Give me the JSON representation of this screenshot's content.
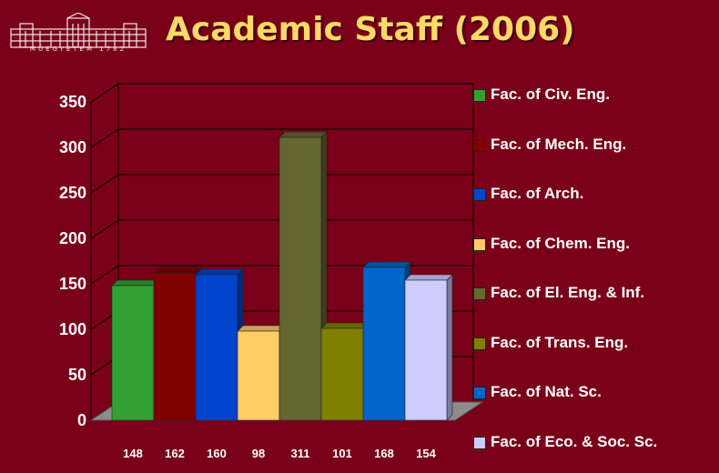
{
  "logo": {
    "caption": "MŰEGYETEM 1782"
  },
  "page_title": "Academic Staff (2006)",
  "chart_data": {
    "type": "bar",
    "title": "Academic Staff (2006)",
    "categories": [
      "Fac. of Civ. Eng.",
      "Fac. of Mech. Eng.",
      "Fac. of Arch.",
      "Fac. of Chem. Eng.",
      "Fac. of El. Eng. & Inf.",
      "Fac. of Trans. Eng.",
      "Fac. of Nat. Sc.",
      "Fac. of Eco. & Soc. Sc."
    ],
    "values": [
      148,
      162,
      160,
      98,
      311,
      101,
      168,
      154
    ],
    "value_labels": [
      "148",
      "162",
      "160",
      "98",
      "311",
      "101",
      "168",
      "154"
    ],
    "colors": [
      "#33a033",
      "#800000",
      "#0044cc",
      "#ffcc66",
      "#666633",
      "#808000",
      "#0066cc",
      "#ccccff"
    ],
    "ylim": [
      0,
      350
    ],
    "yticks": [
      0,
      50,
      100,
      150,
      200,
      250,
      300,
      350
    ],
    "grid": true,
    "legend": "right",
    "three_d": true
  }
}
